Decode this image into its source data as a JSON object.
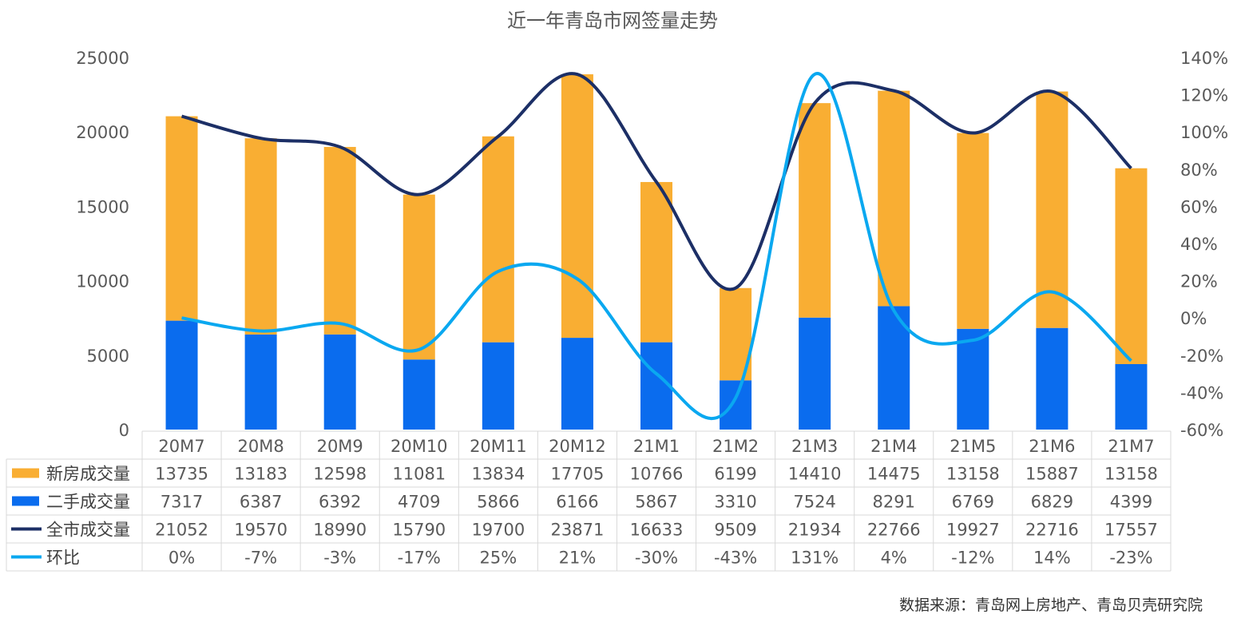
{
  "chart_data": {
    "type": "bar",
    "title": "近一年青岛市网签量走势",
    "categories": [
      "20M7",
      "20M8",
      "20M9",
      "20M10",
      "20M11",
      "20M12",
      "21M1",
      "21M2",
      "21M3",
      "21M4",
      "21M5",
      "21M6",
      "21M7"
    ],
    "series": [
      {
        "name": "新房成交量",
        "type": "stacked-bar",
        "color": "#F9AE33",
        "labels": [
          "13735",
          "13183",
          "12598",
          "11081",
          "13834",
          "17705",
          "10766",
          "6199",
          "14410",
          "14475",
          "13158",
          "15887",
          "13158"
        ],
        "values": [
          13735,
          13183,
          12598,
          11081,
          13834,
          17705,
          10766,
          6199,
          14410,
          14475,
          13158,
          15887,
          13158
        ]
      },
      {
        "name": "二手成交量",
        "type": "stacked-bar",
        "color": "#0A6CEE",
        "labels": [
          "7317",
          "6387",
          "6392",
          "4709",
          "5866",
          "6166",
          "5867",
          "3310",
          "7524",
          "8291",
          "6769",
          "6829",
          "4399"
        ],
        "values": [
          7317,
          6387,
          6392,
          4709,
          5866,
          6166,
          5867,
          3310,
          7524,
          8291,
          6769,
          6829,
          4399
        ]
      },
      {
        "name": "全市成交量",
        "type": "line",
        "axis": "left",
        "color": "#1C2F66",
        "labels": [
          "21052",
          "19570",
          "18990",
          "15790",
          "19700",
          "23871",
          "16633",
          "9509",
          "21934",
          "22766",
          "19927",
          "22716",
          "17557"
        ],
        "values": [
          21052,
          19570,
          18990,
          15790,
          19700,
          23871,
          16633,
          9509,
          21934,
          22766,
          19927,
          22716,
          17557
        ]
      },
      {
        "name": "环比",
        "type": "line",
        "axis": "right",
        "color": "#0AA8F0",
        "labels": [
          "0%",
          "-7%",
          "-3%",
          "-17%",
          "25%",
          "21%",
          "-30%",
          "-43%",
          "131%",
          "4%",
          "-12%",
          "14%",
          "-23%"
        ],
        "values": [
          0,
          -7,
          -3,
          -17,
          25,
          21,
          -30,
          -43,
          131,
          4,
          -12,
          14,
          -23
        ]
      }
    ],
    "y_left": {
      "min": 0,
      "max": 25000,
      "ticks": [
        "0",
        "5000",
        "10000",
        "15000",
        "20000",
        "25000"
      ]
    },
    "y_right": {
      "min": -60,
      "max": 140,
      "ticks": [
        "-60%",
        "-40%",
        "-20%",
        "0%",
        "20%",
        "40%",
        "60%",
        "80%",
        "100%",
        "120%",
        "140%"
      ]
    },
    "legend_placement": "data-table-left",
    "source": "数据来源：青岛网上房地产、青岛贝壳研究院"
  }
}
